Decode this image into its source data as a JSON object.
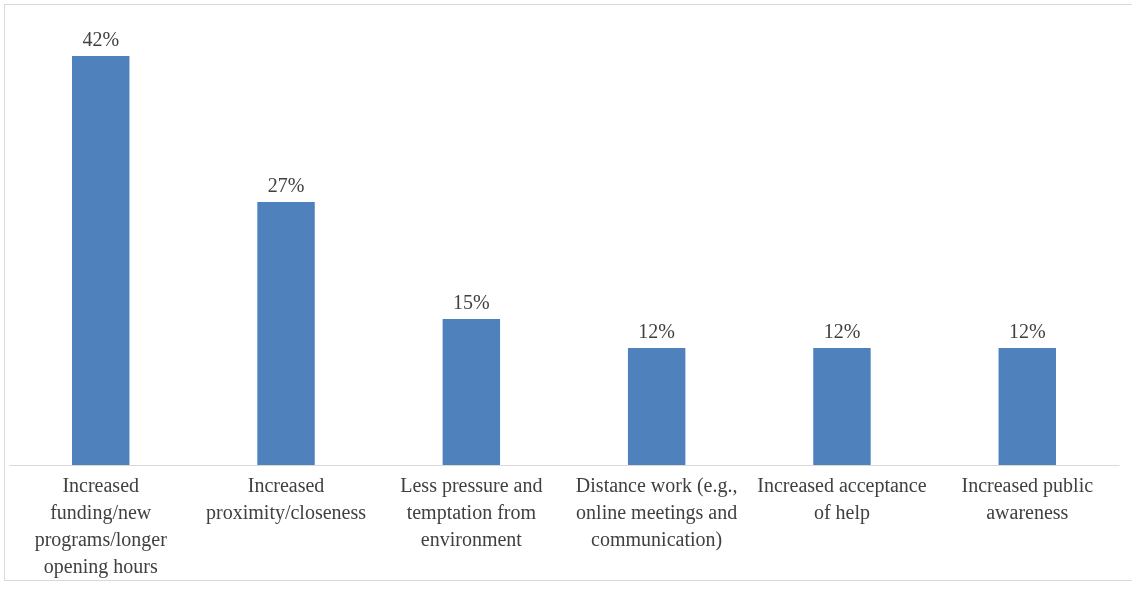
{
  "chart_data": {
    "type": "bar",
    "categories": [
      "Increased funding/new programs/longer opening hours",
      "Increased proximity/closeness",
      "Less pressure and temptation from environment",
      "Distance work (e.g., online meetings and communication)",
      "Increased acceptance of help",
      "Increased public awareness"
    ],
    "values": [
      42,
      27,
      15,
      12,
      12,
      12
    ],
    "value_labels": [
      "42%",
      "27%",
      "15%",
      "12%",
      "12%",
      "12%"
    ],
    "color": "#4f81bd"
  }
}
